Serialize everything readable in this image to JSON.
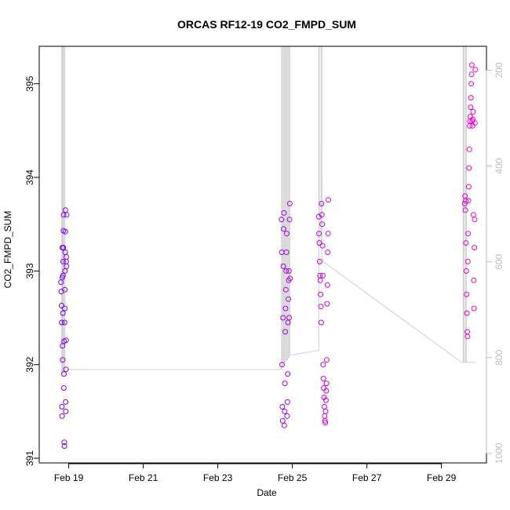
{
  "chart_data": {
    "type": "scatter",
    "title": "ORCAS RF12-19 CO2_FMPD_SUM",
    "xlabel": "Date",
    "ylabel": "CO2_FMPD_SUM",
    "xlim": [
      "2016-02-18 05:00",
      "2016-03-01 05:00"
    ],
    "ylim": [
      390.95,
      395.4
    ],
    "y_ticks": [
      391,
      392,
      393,
      394,
      395
    ],
    "x_ticks": [
      {
        "date": "2016-02-19",
        "label": "Feb 19"
      },
      {
        "date": "2016-02-21",
        "label": "Feb 21"
      },
      {
        "date": "2016-02-23",
        "label": "Feb 23"
      },
      {
        "date": "2016-02-25",
        "label": "Feb 25"
      },
      {
        "date": "2016-02-27",
        "label": "Feb 27"
      },
      {
        "date": "2016-02-29",
        "label": "Feb 29"
      }
    ],
    "right_axis": {
      "ylim": [
        1020,
        150
      ],
      "ticks": [
        200,
        400,
        600,
        800,
        1000
      ],
      "color": "#bdbdbd"
    },
    "grid": false,
    "legend": "none",
    "series": [
      {
        "kind": "points",
        "color_from": "#6a00ff",
        "color_to": "#ff00cc",
        "points": [
          [
            "2016-02-18 19:00",
            392.88
          ],
          [
            "2016-02-18 19:12",
            392.78
          ],
          [
            "2016-02-18 19:24",
            392.63
          ],
          [
            "2016-02-18 19:30",
            392.45
          ],
          [
            "2016-02-18 19:36",
            391.55
          ],
          [
            "2016-02-18 19:42",
            391.45
          ],
          [
            "2016-02-18 19:48",
            392.93
          ],
          [
            "2016-02-18 19:54",
            393.25
          ],
          [
            "2016-02-18 20:00",
            392.2
          ],
          [
            "2016-02-18 20:06",
            392.05
          ],
          [
            "2016-02-18 20:12",
            392.55
          ],
          [
            "2016-02-18 20:18",
            392.95
          ],
          [
            "2016-02-18 20:24",
            393.1
          ],
          [
            "2016-02-18 20:30",
            393.25
          ],
          [
            "2016-02-18 20:36",
            393.43
          ],
          [
            "2016-02-18 20:42",
            393.6
          ],
          [
            "2016-02-18 20:48",
            391.75
          ],
          [
            "2016-02-18 20:54",
            391.9
          ],
          [
            "2016-02-18 21:00",
            392.25
          ],
          [
            "2016-02-18 21:06",
            391.17
          ],
          [
            "2016-02-18 21:12",
            391.13
          ],
          [
            "2016-02-18 21:18",
            392.45
          ],
          [
            "2016-02-18 21:24",
            392.6
          ],
          [
            "2016-02-18 21:30",
            392.8
          ],
          [
            "2016-02-18 21:36",
            393.0
          ],
          [
            "2016-02-18 21:42",
            393.2
          ],
          [
            "2016-02-18 21:48",
            393.42
          ],
          [
            "2016-02-18 21:54",
            393.65
          ],
          [
            "2016-02-18 22:00",
            391.6
          ],
          [
            "2016-02-18 22:06",
            391.5
          ],
          [
            "2016-02-18 22:12",
            391.95
          ],
          [
            "2016-02-18 22:18",
            392.26
          ],
          [
            "2016-02-18 22:24",
            393.1
          ],
          [
            "2016-02-18 22:30",
            393.15
          ],
          [
            "2016-02-18 22:36",
            393.05
          ],
          [
            "2016-02-18 22:42",
            393.6
          ],
          [
            "2016-02-24 17:00",
            393.55
          ],
          [
            "2016-02-24 17:12",
            393.2
          ],
          [
            "2016-02-24 17:24",
            392.0
          ],
          [
            "2016-02-24 17:36",
            391.55
          ],
          [
            "2016-02-24 17:48",
            391.4
          ],
          [
            "2016-02-24 18:00",
            392.5
          ],
          [
            "2016-02-24 18:12",
            393.05
          ],
          [
            "2016-02-24 18:24",
            393.45
          ],
          [
            "2016-02-24 18:36",
            393.62
          ],
          [
            "2016-02-24 18:48",
            391.35
          ],
          [
            "2016-02-24 19:00",
            391.5
          ],
          [
            "2016-02-24 19:12",
            391.8
          ],
          [
            "2016-02-24 19:24",
            392.35
          ],
          [
            "2016-02-24 19:36",
            392.6
          ],
          [
            "2016-02-24 19:48",
            392.8
          ],
          [
            "2016-02-24 20:00",
            393.0
          ],
          [
            "2016-02-24 20:12",
            393.2
          ],
          [
            "2016-02-24 20:24",
            393.4
          ],
          [
            "2016-02-24 20:36",
            391.45
          ],
          [
            "2016-02-24 20:48",
            391.6
          ],
          [
            "2016-02-24 21:00",
            391.9
          ],
          [
            "2016-02-24 21:12",
            392.45
          ],
          [
            "2016-02-24 21:24",
            392.7
          ],
          [
            "2016-02-24 21:36",
            392.9
          ],
          [
            "2016-02-24 21:48",
            393.0
          ],
          [
            "2016-02-24 22:00",
            392.5
          ],
          [
            "2016-02-24 22:12",
            393.55
          ],
          [
            "2016-02-24 22:24",
            393.72
          ],
          [
            "2016-02-24 22:36",
            392.92
          ],
          [
            "2016-02-25 17:00",
            393.58
          ],
          [
            "2016-02-25 17:12",
            393.4
          ],
          [
            "2016-02-25 17:24",
            393.3
          ],
          [
            "2016-02-25 17:36",
            393.1
          ],
          [
            "2016-02-25 17:48",
            392.95
          ],
          [
            "2016-02-25 18:00",
            392.9
          ],
          [
            "2016-02-25 18:12",
            392.75
          ],
          [
            "2016-02-25 18:24",
            392.62
          ],
          [
            "2016-02-25 18:36",
            392.45
          ],
          [
            "2016-02-25 18:48",
            393.72
          ],
          [
            "2016-02-25 19:00",
            393.6
          ],
          [
            "2016-02-25 19:12",
            393.5
          ],
          [
            "2016-02-25 19:24",
            393.27
          ],
          [
            "2016-02-25 19:36",
            392.95
          ],
          [
            "2016-02-25 19:48",
            392.0
          ],
          [
            "2016-02-25 20:00",
            391.85
          ],
          [
            "2016-02-25 20:12",
            391.75
          ],
          [
            "2016-02-25 20:24",
            391.65
          ],
          [
            "2016-02-25 20:36",
            391.55
          ],
          [
            "2016-02-25 20:48",
            391.45
          ],
          [
            "2016-02-25 21:00",
            391.4
          ],
          [
            "2016-02-25 21:12",
            391.38
          ],
          [
            "2016-02-25 21:24",
            391.5
          ],
          [
            "2016-02-25 21:36",
            391.62
          ],
          [
            "2016-02-25 21:48",
            391.72
          ],
          [
            "2016-02-25 22:00",
            391.8
          ],
          [
            "2016-02-25 22:12",
            392.05
          ],
          [
            "2016-02-25 22:24",
            392.65
          ],
          [
            "2016-02-25 22:36",
            392.85
          ],
          [
            "2016-02-25 22:48",
            393.2
          ],
          [
            "2016-02-25 23:00",
            393.4
          ],
          [
            "2016-02-25 23:12",
            393.76
          ],
          [
            "2016-02-29 15:00",
            393.72
          ],
          [
            "2016-02-29 15:12",
            393.8
          ],
          [
            "2016-02-29 15:24",
            393.65
          ],
          [
            "2016-02-29 15:36",
            393.75
          ],
          [
            "2016-02-29 15:48",
            393.3
          ],
          [
            "2016-02-29 16:00",
            393.0
          ],
          [
            "2016-02-29 16:12",
            392.75
          ],
          [
            "2016-02-29 16:24",
            392.55
          ],
          [
            "2016-02-29 16:36",
            392.35
          ],
          [
            "2016-02-29 16:48",
            392.3
          ],
          [
            "2016-02-29 17:00",
            393.1
          ],
          [
            "2016-02-29 17:12",
            393.4
          ],
          [
            "2016-02-29 17:24",
            393.75
          ],
          [
            "2016-02-29 17:36",
            393.9
          ],
          [
            "2016-02-29 17:48",
            394.1
          ],
          [
            "2016-02-29 18:00",
            394.3
          ],
          [
            "2016-02-29 18:12",
            394.55
          ],
          [
            "2016-02-29 18:24",
            394.6
          ],
          [
            "2016-02-29 18:36",
            394.65
          ],
          [
            "2016-02-29 18:48",
            394.75
          ],
          [
            "2016-02-29 19:00",
            394.85
          ],
          [
            "2016-02-29 19:12",
            395.0
          ],
          [
            "2016-02-29 19:24",
            395.1
          ],
          [
            "2016-02-29 19:36",
            395.2
          ],
          [
            "2016-02-29 19:48",
            394.6
          ],
          [
            "2016-02-29 20:00",
            394.55
          ],
          [
            "2016-02-29 20:12",
            394.62
          ],
          [
            "2016-02-29 20:24",
            394.7
          ],
          [
            "2016-02-29 20:36",
            393.6
          ],
          [
            "2016-02-29 20:48",
            392.9
          ],
          [
            "2016-02-29 21:00",
            392.6
          ],
          [
            "2016-02-29 21:12",
            393.25
          ],
          [
            "2016-02-29 21:24",
            393.55
          ],
          [
            "2016-02-29 21:36",
            394.58
          ],
          [
            "2016-02-29 21:48",
            395.15
          ]
        ]
      },
      {
        "kind": "line",
        "axis": "right",
        "color": "#cfcfcf",
        "points": [
          [
            "2016-02-18 19:00",
            830
          ],
          [
            "2016-02-18 19:30",
            830
          ],
          [
            "2016-02-18 19:31",
            150
          ],
          [
            "2016-02-18 19:45",
            150
          ],
          [
            "2016-02-18 19:46",
            830
          ],
          [
            "2016-02-18 20:15",
            830
          ],
          [
            "2016-02-18 20:16",
            150
          ],
          [
            "2016-02-18 20:30",
            150
          ],
          [
            "2016-02-18 20:31",
            830
          ],
          [
            "2016-02-18 21:15",
            830
          ],
          [
            "2016-02-18 21:16",
            150
          ],
          [
            "2016-02-18 21:30",
            150
          ],
          [
            "2016-02-18 21:31",
            830
          ],
          [
            "2016-02-18 22:45",
            830
          ],
          [
            "2016-02-19 00:00",
            825
          ],
          [
            "2016-02-24 17:00",
            825
          ],
          [
            "2016-02-24 17:01",
            150
          ],
          [
            "2016-02-24 17:15",
            150
          ],
          [
            "2016-02-24 17:16",
            820
          ],
          [
            "2016-02-24 18:00",
            820
          ],
          [
            "2016-02-24 18:01",
            150
          ],
          [
            "2016-02-24 18:15",
            150
          ],
          [
            "2016-02-24 18:16",
            810
          ],
          [
            "2016-02-24 19:00",
            810
          ],
          [
            "2016-02-24 19:01",
            150
          ],
          [
            "2016-02-24 19:15",
            150
          ],
          [
            "2016-02-24 19:16",
            810
          ],
          [
            "2016-02-24 20:00",
            810
          ],
          [
            "2016-02-24 20:01",
            150
          ],
          [
            "2016-02-24 20:15",
            150
          ],
          [
            "2016-02-24 20:16",
            805
          ],
          [
            "2016-02-24 21:00",
            805
          ],
          [
            "2016-02-24 21:01",
            150
          ],
          [
            "2016-02-24 21:15",
            150
          ],
          [
            "2016-02-24 21:16",
            800
          ],
          [
            "2016-02-24 22:00",
            800
          ],
          [
            "2016-02-24 22:01",
            150
          ],
          [
            "2016-02-24 22:20",
            150
          ],
          [
            "2016-02-24 22:21",
            795
          ],
          [
            "2016-02-25 17:00",
            785
          ],
          [
            "2016-02-25 17:01",
            150
          ],
          [
            "2016-02-25 17:20",
            150
          ],
          [
            "2016-02-25 17:21",
            560
          ],
          [
            "2016-02-25 18:30",
            560
          ],
          [
            "2016-02-25 18:31",
            150
          ],
          [
            "2016-02-25 19:00",
            150
          ],
          [
            "2016-02-25 19:01",
            590
          ],
          [
            "2016-02-25 20:00",
            600
          ],
          [
            "2016-02-29 13:00",
            810
          ],
          [
            "2016-02-29 14:00",
            810
          ],
          [
            "2016-02-29 14:01",
            150
          ],
          [
            "2016-02-29 14:30",
            150
          ],
          [
            "2016-02-29 14:31",
            810
          ],
          [
            "2016-02-29 15:30",
            810
          ],
          [
            "2016-02-29 15:31",
            150
          ],
          [
            "2016-02-29 16:00",
            150
          ],
          [
            "2016-02-29 16:01",
            810
          ],
          [
            "2016-02-29 22:00",
            810
          ]
        ]
      }
    ]
  }
}
